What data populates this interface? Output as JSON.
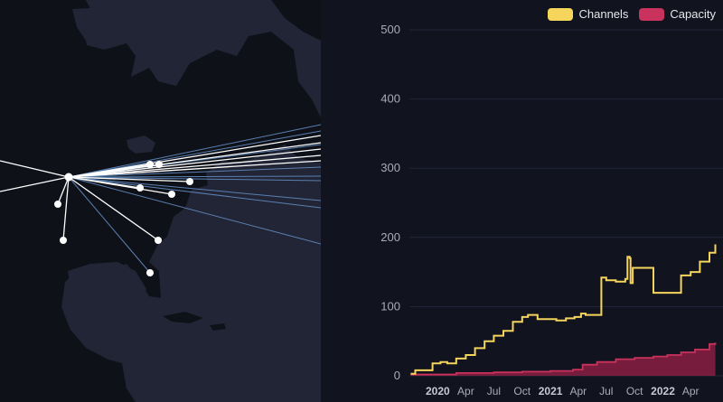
{
  "colors": {
    "channels": "#f6d55c",
    "capacity": "#c8325c",
    "capacity_fill": "#8a1f42",
    "map_bg": "#222536",
    "land": "#0f1119",
    "link": "#ffffff",
    "link_faint": "#5a7fb0",
    "grid": "#23263a"
  },
  "legend": {
    "channels_label": "Channels",
    "capacity_label": "Capacity"
  },
  "chart_data": {
    "type": "line",
    "title": "",
    "xlabel": "",
    "ylabel": "",
    "ylim": [
      0,
      500
    ],
    "yticks": [
      0,
      100,
      200,
      300,
      400,
      500
    ],
    "xlim": [
      "2019-10-01",
      "2022-07-15"
    ],
    "xticks": [
      {
        "date": "2020-01-01",
        "label": "2020",
        "year": true
      },
      {
        "date": "2020-04-01",
        "label": "Apr",
        "year": false
      },
      {
        "date": "2020-07-01",
        "label": "Jul",
        "year": false
      },
      {
        "date": "2020-10-01",
        "label": "Oct",
        "year": false
      },
      {
        "date": "2021-01-01",
        "label": "2021",
        "year": true
      },
      {
        "date": "2021-04-01",
        "label": "Apr",
        "year": false
      },
      {
        "date": "2021-07-01",
        "label": "Jul",
        "year": false
      },
      {
        "date": "2021-10-01",
        "label": "Oct",
        "year": false
      },
      {
        "date": "2022-01-01",
        "label": "2022",
        "year": true
      },
      {
        "date": "2022-04-01",
        "label": "Apr",
        "year": false
      }
    ],
    "grid": true,
    "legend_position": "top-right",
    "series": [
      {
        "name": "Channels",
        "style": "line",
        "points": [
          [
            "2019-10-05",
            3
          ],
          [
            "2019-10-20",
            8
          ],
          [
            "2019-12-10",
            8
          ],
          [
            "2019-12-15",
            18
          ],
          [
            "2020-01-10",
            20
          ],
          [
            "2020-02-01",
            18
          ],
          [
            "2020-03-01",
            25
          ],
          [
            "2020-04-01",
            30
          ],
          [
            "2020-05-01",
            40
          ],
          [
            "2020-06-01",
            50
          ],
          [
            "2020-07-01",
            58
          ],
          [
            "2020-08-01",
            65
          ],
          [
            "2020-09-01",
            78
          ],
          [
            "2020-10-01",
            85
          ],
          [
            "2020-10-20",
            88
          ],
          [
            "2020-11-20",
            82
          ],
          [
            "2020-12-20",
            82
          ],
          [
            "2021-01-20",
            80
          ],
          [
            "2021-02-20",
            83
          ],
          [
            "2021-03-20",
            85
          ],
          [
            "2021-04-10",
            90
          ],
          [
            "2021-04-25",
            88
          ],
          [
            "2021-05-15",
            88
          ],
          [
            "2021-06-10",
            88
          ],
          [
            "2021-06-15",
            142
          ],
          [
            "2021-07-01",
            138
          ],
          [
            "2021-08-01",
            136
          ],
          [
            "2021-09-01",
            140
          ],
          [
            "2021-09-08",
            172
          ],
          [
            "2021-09-15",
            170
          ],
          [
            "2021-09-18",
            134
          ],
          [
            "2021-09-22",
            134
          ],
          [
            "2021-09-25",
            156
          ],
          [
            "2021-11-30",
            156
          ],
          [
            "2021-12-01",
            120
          ],
          [
            "2022-02-25",
            120
          ],
          [
            "2022-03-01",
            145
          ],
          [
            "2022-04-01",
            150
          ],
          [
            "2022-05-01",
            165
          ],
          [
            "2022-06-01",
            178
          ],
          [
            "2022-06-20",
            190
          ]
        ]
      },
      {
        "name": "Capacity",
        "style": "area",
        "points": [
          [
            "2019-10-05",
            2
          ],
          [
            "2020-03-01",
            4
          ],
          [
            "2020-07-01",
            5
          ],
          [
            "2020-10-01",
            6
          ],
          [
            "2021-01-01",
            7
          ],
          [
            "2021-03-15",
            9
          ],
          [
            "2021-04-15",
            16
          ],
          [
            "2021-06-01",
            20
          ],
          [
            "2021-08-01",
            24
          ],
          [
            "2021-10-01",
            26
          ],
          [
            "2021-12-01",
            28
          ],
          [
            "2022-01-15",
            30
          ],
          [
            "2022-03-01",
            34
          ],
          [
            "2022-04-15",
            38
          ],
          [
            "2022-06-01",
            46
          ],
          [
            "2022-06-20",
            48
          ]
        ]
      }
    ]
  }
}
